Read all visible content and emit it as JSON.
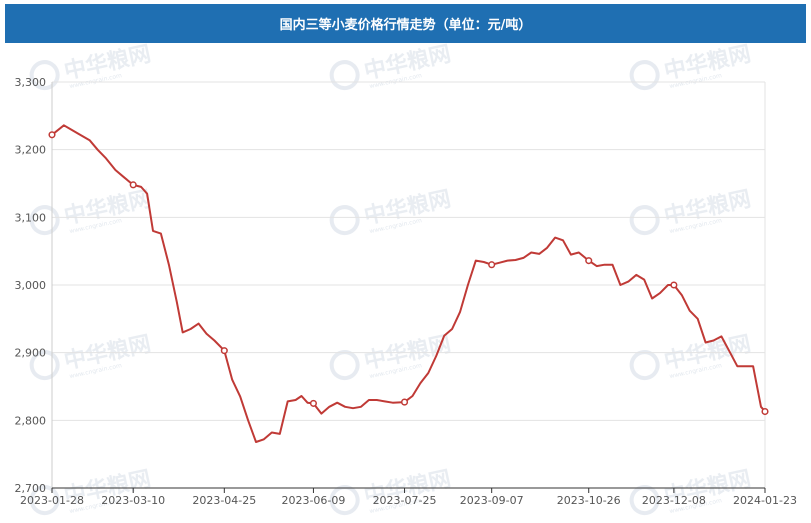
{
  "header": {
    "title": "国内三等小麦价格行情走势（单位：元/吨）"
  },
  "watermark": {
    "text": "中华粮网",
    "sub": "www.cngrain.com"
  },
  "chart_data": {
    "type": "line",
    "title": "国内三等小麦价格行情走势（单位：元/吨）",
    "xlabel": "",
    "ylabel": "",
    "ylim": [
      2700,
      3300
    ],
    "yticks": [
      "3,300",
      "3,200",
      "3,100",
      "3,000",
      "2,900",
      "2,800",
      "2,700"
    ],
    "ytick_values": [
      3300,
      3200,
      3100,
      3000,
      2900,
      2800,
      2700
    ],
    "xticks": [
      "2023-01-28",
      "2023-03-10",
      "2023-04-25",
      "2023-06-09",
      "2023-07-25",
      "2023-09-07",
      "2023-10-26",
      "2023-12-08",
      "2024-01-23"
    ],
    "grid": true,
    "line_color": "#c03a36",
    "series": [
      {
        "name": "",
        "x": [
          "2023-01-28",
          "2023-02-03",
          "2023-02-10",
          "2023-02-16",
          "2023-02-20",
          "2023-02-24",
          "2023-03-01",
          "2023-03-05",
          "2023-03-10",
          "2023-03-14",
          "2023-03-17",
          "2023-03-20",
          "2023-03-24",
          "2023-03-28",
          "2023-04-01",
          "2023-04-04",
          "2023-04-08",
          "2023-04-12",
          "2023-04-16",
          "2023-04-20",
          "2023-04-25",
          "2023-04-29",
          "2023-05-03",
          "2023-05-07",
          "2023-05-11",
          "2023-05-15",
          "2023-05-19",
          "2023-05-23",
          "2023-05-27",
          "2023-05-31",
          "2023-06-03",
          "2023-06-06",
          "2023-06-09",
          "2023-06-13",
          "2023-06-17",
          "2023-06-21",
          "2023-06-25",
          "2023-06-29",
          "2023-07-03",
          "2023-07-07",
          "2023-07-11",
          "2023-07-15",
          "2023-07-19",
          "2023-07-25",
          "2023-07-29",
          "2023-08-02",
          "2023-08-06",
          "2023-08-10",
          "2023-08-14",
          "2023-08-18",
          "2023-08-22",
          "2023-08-26",
          "2023-08-30",
          "2023-09-03",
          "2023-09-07",
          "2023-09-11",
          "2023-09-15",
          "2023-09-19",
          "2023-09-23",
          "2023-09-27",
          "2023-10-01",
          "2023-10-05",
          "2023-10-09",
          "2023-10-13",
          "2023-10-17",
          "2023-10-21",
          "2023-10-26",
          "2023-10-30",
          "2023-11-03",
          "2023-11-07",
          "2023-11-11",
          "2023-11-15",
          "2023-11-19",
          "2023-11-23",
          "2023-11-27",
          "2023-12-01",
          "2023-12-05",
          "2023-12-08",
          "2023-12-12",
          "2023-12-16",
          "2023-12-20",
          "2023-12-24",
          "2023-12-28",
          "2024-01-01",
          "2024-01-05",
          "2024-01-09",
          "2024-01-13",
          "2024-01-17",
          "2024-01-21",
          "2024-01-23"
        ],
        "values": [
          3222,
          3236,
          3224,
          3214,
          3200,
          3188,
          3170,
          3160,
          3148,
          3145,
          3135,
          3080,
          3076,
          3030,
          2975,
          2930,
          2935,
          2943,
          2928,
          2918,
          2903,
          2860,
          2835,
          2800,
          2768,
          2772,
          2782,
          2780,
          2828,
          2830,
          2836,
          2826,
          2825,
          2810,
          2820,
          2826,
          2820,
          2818,
          2820,
          2830,
          2830,
          2828,
          2826,
          2827,
          2836,
          2855,
          2870,
          2895,
          2925,
          2935,
          2960,
          3000,
          3036,
          3034,
          3030,
          3033,
          3036,
          3037,
          3040,
          3048,
          3046,
          3055,
          3070,
          3066,
          3045,
          3048,
          3036,
          3028,
          3030,
          3030,
          3000,
          3005,
          3015,
          3008,
          2980,
          2988,
          3000,
          3000,
          2985,
          2962,
          2950,
          2915,
          2918,
          2924,
          2902,
          2880,
          2880,
          2880,
          2820,
          2813
        ]
      }
    ],
    "markers_x": [
      "2023-01-28",
      "2023-03-10",
      "2023-04-25",
      "2023-06-09",
      "2023-07-25",
      "2023-09-07",
      "2023-10-26",
      "2023-12-08",
      "2024-01-23"
    ]
  }
}
